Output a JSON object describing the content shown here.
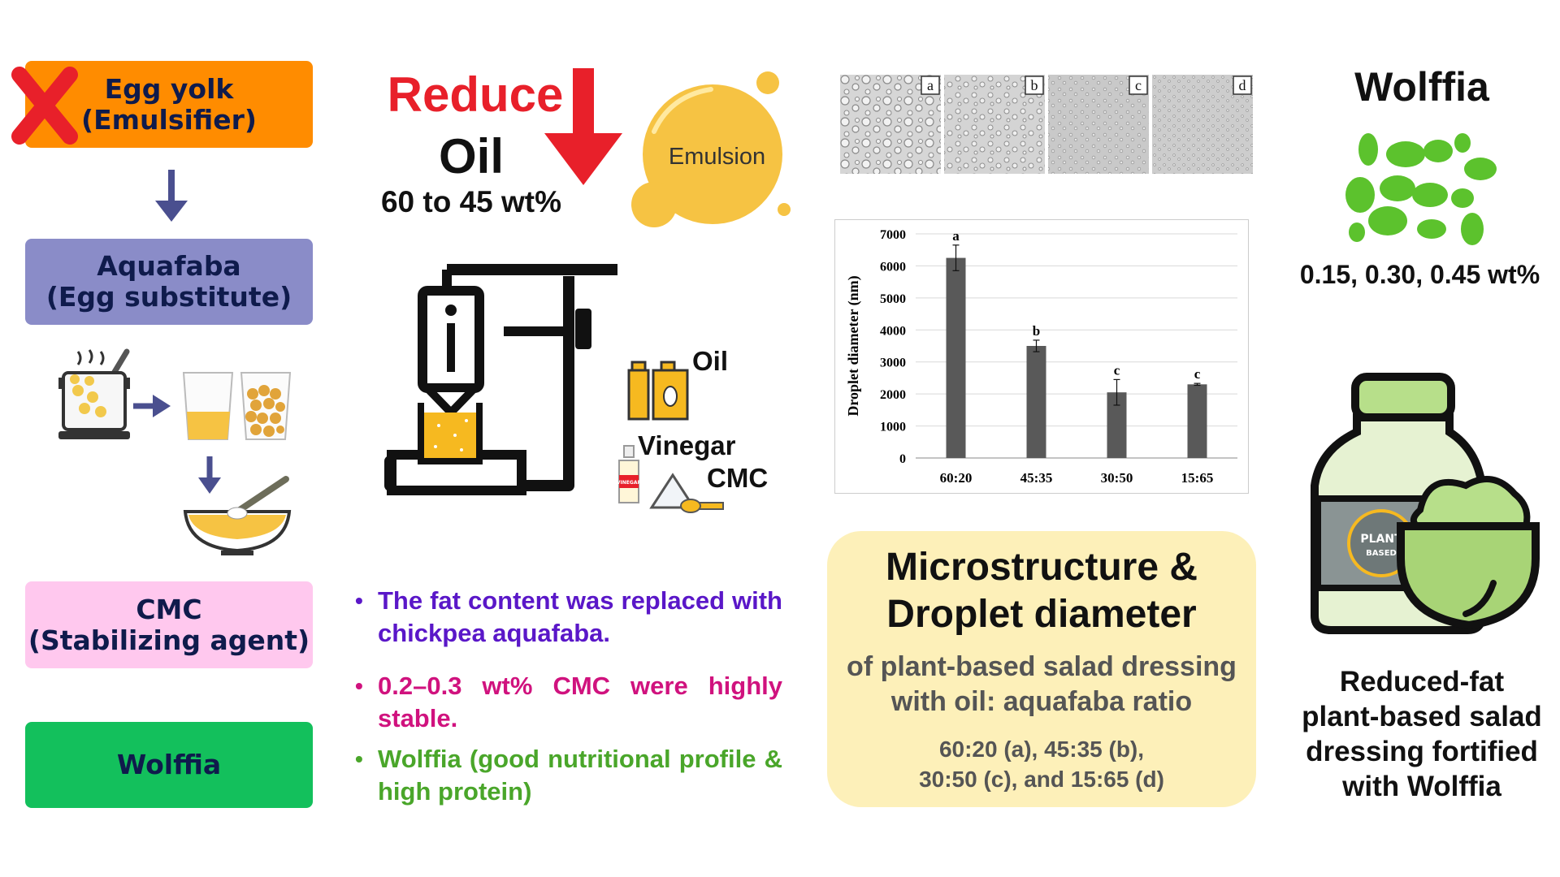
{
  "left": {
    "egg": "Egg yolk\n(Emulsifier)",
    "aquafaba": "Aquafaba\n(Egg substitute)",
    "cmc": "CMC\n(Stabilizing agent)",
    "wolffia": "Wolffia",
    "colors": {
      "egg": "#ff8c00",
      "aquafaba": "#8a8cc8",
      "cmc": "#ffc8ee",
      "wolffia": "#13c05c",
      "cross": "#e8202a",
      "arrow": "#4a4f8f"
    }
  },
  "middle": {
    "reduce": "Reduce",
    "oil": "Oil",
    "range": "60 to 45 wt%",
    "emulsion": "Emulsion",
    "labels": {
      "oil": "Oil",
      "vinegar": "Vinegar",
      "cmc": "CMC",
      "vinegar_bottle": "VINEGAR"
    },
    "bullets": [
      {
        "text": "The fat content was replaced with chickpea aquafaba.",
        "color": "#5a17c8"
      },
      {
        "text": "0.2–0.3 wt% CMC were highly stable.",
        "color": "#d0127e"
      },
      {
        "text": "Wolffia (good nutritional profile & high protein)",
        "color": "#4aa62a"
      }
    ]
  },
  "micro": {
    "labels": [
      "a",
      "b",
      "c",
      "d"
    ]
  },
  "chart_data": {
    "type": "bar",
    "categories": [
      "60:20",
      "45:35",
      "30:50",
      "15:65"
    ],
    "values": [
      6250,
      3500,
      2050,
      2300
    ],
    "errors": [
      400,
      180,
      400,
      30
    ],
    "letters": [
      "a",
      "b",
      "c",
      "c"
    ],
    "ylabel": "Droplet diameter (nm)",
    "ylim": [
      0,
      7000
    ],
    "yticks": [
      0,
      1000,
      2000,
      3000,
      4000,
      5000,
      6000,
      7000
    ],
    "grid": true,
    "bar_color": "#595959"
  },
  "summary": {
    "title": "Microstructure &\nDroplet diameter",
    "subtitle": "of plant-based salad dressing\nwith oil: aquafaba ratio",
    "ratios": "60:20 (a), 45:35 (b),\n30:50 (c), and 15:65 (d)",
    "bg": "#fdf0b9"
  },
  "right": {
    "title": "Wolffia",
    "amounts": "0.15, 0.30, 0.45 wt%",
    "badge": {
      "line1": "PLANT",
      "line2": "BASED"
    },
    "caption": "Reduced-fat\nplant-based salad\ndressing fortified\nwith Wolffia"
  }
}
